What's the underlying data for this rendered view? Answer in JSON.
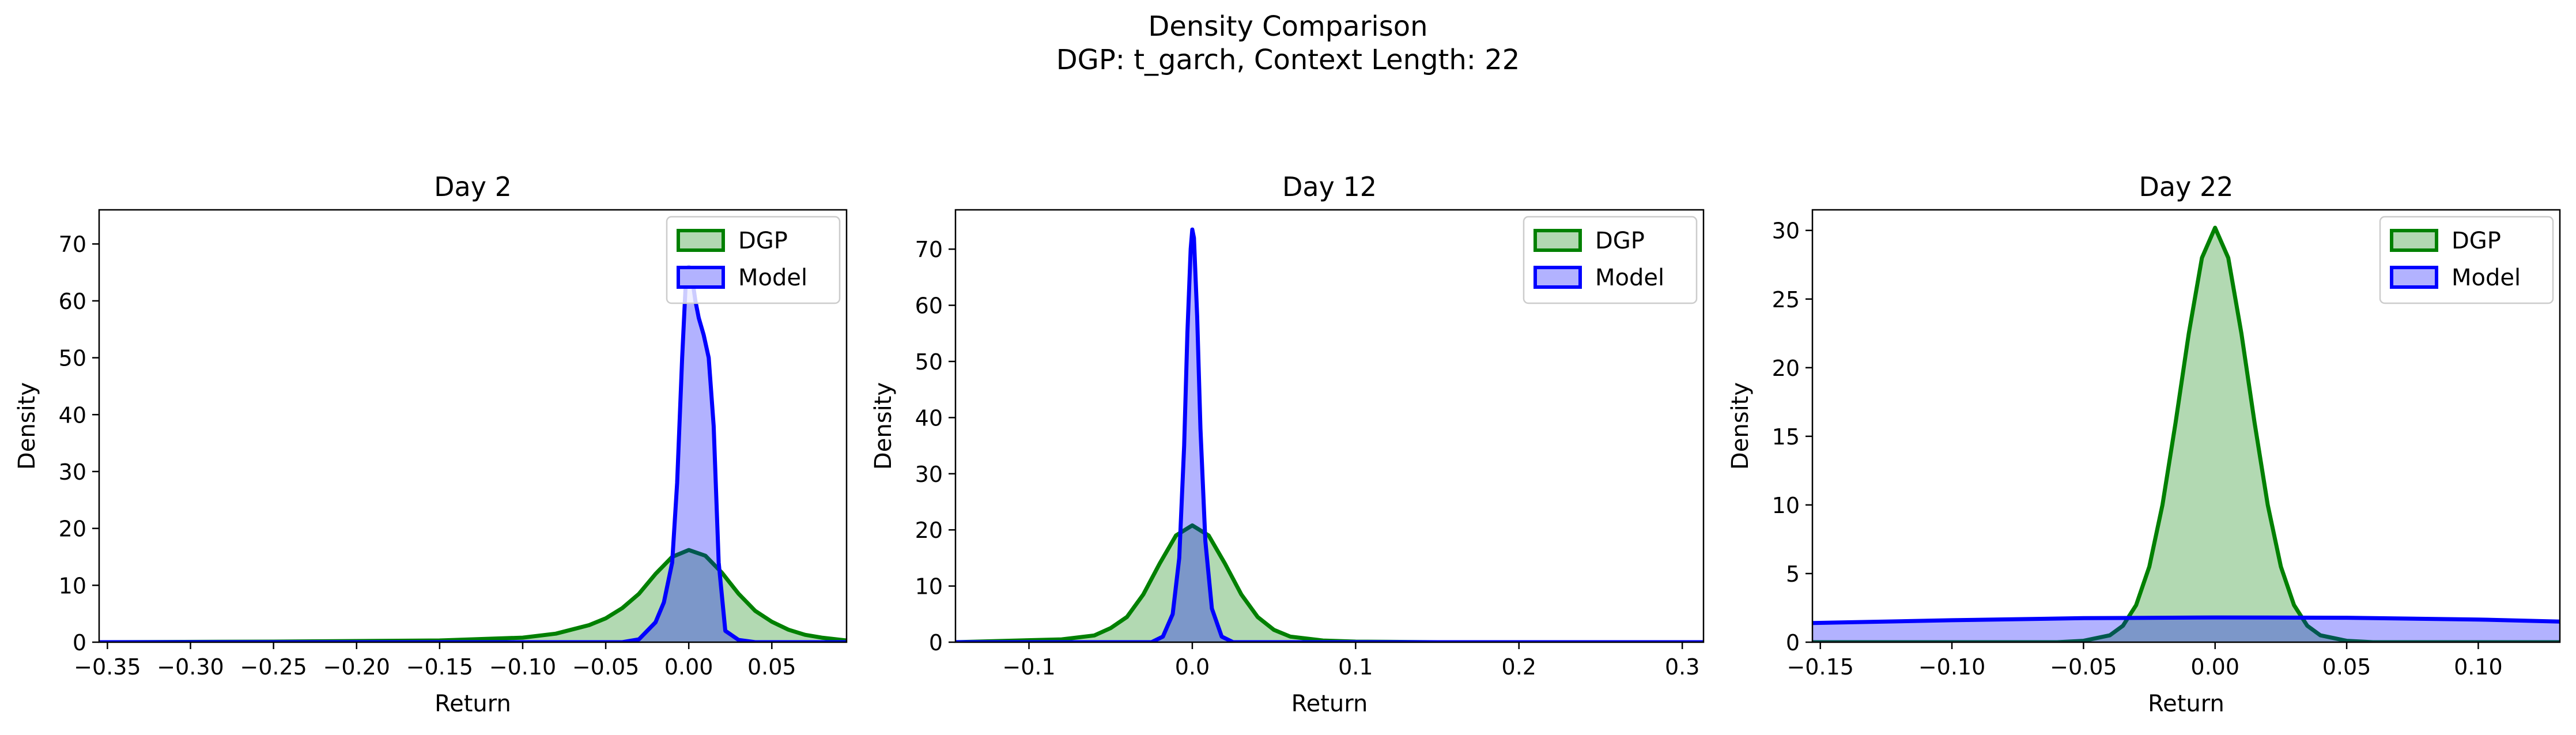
{
  "figure": {
    "title_line1": "Density Comparison",
    "title_line2": "DGP: t_garch, Context Length: 22"
  },
  "colors": {
    "dgp_line": "#008000",
    "dgp_fill": "#b2d8b2",
    "model_line": "#0000ff",
    "model_fill": "#b2b2ff",
    "overlap_fill": "#7f93cc"
  },
  "chart_data": [
    {
      "type": "area",
      "title": "Day 2",
      "xlabel": "Return",
      "ylabel": "Density",
      "xlim": [
        -0.355,
        0.095
      ],
      "ylim": [
        0,
        76
      ],
      "xticks": [
        -0.35,
        -0.3,
        -0.25,
        -0.2,
        -0.15,
        -0.1,
        -0.05,
        0.0,
        0.05
      ],
      "xtick_labels": [
        "−0.35",
        "−0.30",
        "−0.25",
        "−0.20",
        "−0.15",
        "−0.10",
        "−0.05",
        "0.00",
        "0.05"
      ],
      "yticks": [
        0,
        10,
        20,
        30,
        40,
        50,
        60,
        70
      ],
      "yticks_labels": [
        "0",
        "10",
        "20",
        "30",
        "40",
        "50",
        "60",
        "70"
      ],
      "legend": "top-right",
      "series": [
        {
          "name": "DGP",
          "x": [
            -0.355,
            -0.25,
            -0.15,
            -0.1,
            -0.08,
            -0.06,
            -0.05,
            -0.04,
            -0.03,
            -0.02,
            -0.01,
            0.0,
            0.01,
            0.02,
            0.03,
            0.04,
            0.05,
            0.06,
            0.07,
            0.08,
            0.095
          ],
          "y": [
            0,
            0.1,
            0.3,
            0.8,
            1.5,
            3.0,
            4.2,
            6.0,
            8.5,
            12.0,
            15.0,
            16.2,
            15.2,
            12.2,
            8.5,
            5.5,
            3.6,
            2.2,
            1.3,
            0.8,
            0.3
          ]
        },
        {
          "name": "Model",
          "x": [
            -0.355,
            -0.04,
            -0.03,
            -0.02,
            -0.015,
            -0.01,
            -0.007,
            -0.004,
            -0.002,
            0.0,
            0.002,
            0.004,
            0.006,
            0.009,
            0.012,
            0.015,
            0.018,
            0.022,
            0.03,
            0.04,
            0.095
          ],
          "y": [
            0,
            0,
            0.5,
            3.5,
            7.0,
            14.0,
            28.0,
            50.0,
            62.0,
            66.0,
            64.0,
            60.0,
            57.0,
            54.0,
            50.0,
            38.0,
            14.0,
            2.0,
            0.4,
            0,
            0
          ]
        }
      ]
    },
    {
      "type": "area",
      "title": "Day 12",
      "xlabel": "Return",
      "ylabel": "Density",
      "xlim": [
        -0.145,
        0.313
      ],
      "ylim": [
        0,
        77
      ],
      "xticks": [
        -0.1,
        0.0,
        0.1,
        0.2,
        0.3
      ],
      "xtick_labels": [
        "−0.1",
        "0.0",
        "0.1",
        "0.2",
        "0.3"
      ],
      "yticks": [
        0,
        10,
        20,
        30,
        40,
        50,
        60,
        70
      ],
      "yticks_labels": [
        "0",
        "10",
        "20",
        "30",
        "40",
        "50",
        "60",
        "70"
      ],
      "legend": "top-right",
      "series": [
        {
          "name": "DGP",
          "x": [
            -0.145,
            -0.08,
            -0.06,
            -0.05,
            -0.04,
            -0.03,
            -0.02,
            -0.01,
            0.0,
            0.01,
            0.02,
            0.03,
            0.04,
            0.05,
            0.06,
            0.08,
            0.1,
            0.15,
            0.313
          ],
          "y": [
            0,
            0.5,
            1.2,
            2.5,
            4.5,
            8.5,
            14.0,
            19.0,
            20.8,
            19.0,
            14.0,
            8.5,
            4.5,
            2.2,
            1.0,
            0.3,
            0.1,
            0,
            0
          ]
        },
        {
          "name": "Model",
          "x": [
            -0.145,
            -0.025,
            -0.018,
            -0.012,
            -0.008,
            -0.005,
            -0.003,
            -0.001,
            0.0,
            0.001,
            0.003,
            0.005,
            0.008,
            0.012,
            0.018,
            0.025,
            0.313
          ],
          "y": [
            0,
            0,
            1.0,
            5.0,
            15.0,
            35.0,
            55.0,
            70.0,
            73.5,
            72.0,
            58.0,
            38.0,
            18.0,
            6.0,
            1.0,
            0,
            0
          ]
        }
      ]
    },
    {
      "type": "area",
      "title": "Day 22",
      "xlabel": "Return",
      "ylabel": "Density",
      "xlim": [
        -0.153,
        0.131
      ],
      "ylim": [
        0,
        31.5
      ],
      "xticks": [
        -0.15,
        -0.1,
        -0.05,
        0.0,
        0.05,
        0.1
      ],
      "xtick_labels": [
        "−0.15",
        "−0.10",
        "−0.05",
        "0.00",
        "0.05",
        "0.10"
      ],
      "yticks": [
        0,
        5,
        10,
        15,
        20,
        25,
        30
      ],
      "yticks_labels": [
        "0",
        "5",
        "10",
        "15",
        "20",
        "25",
        "30"
      ],
      "legend": "top-right",
      "series": [
        {
          "name": "DGP",
          "x": [
            -0.153,
            -0.06,
            -0.05,
            -0.04,
            -0.035,
            -0.03,
            -0.025,
            -0.02,
            -0.015,
            -0.01,
            -0.005,
            0.0,
            0.005,
            0.01,
            0.015,
            0.02,
            0.025,
            0.03,
            0.035,
            0.04,
            0.05,
            0.06,
            0.131
          ],
          "y": [
            0,
            0,
            0.1,
            0.5,
            1.2,
            2.7,
            5.5,
            10.0,
            16.0,
            22.5,
            28.0,
            30.2,
            28.0,
            22.5,
            16.0,
            10.0,
            5.5,
            2.7,
            1.2,
            0.5,
            0.1,
            0,
            0
          ]
        },
        {
          "name": "Model",
          "x": [
            -0.153,
            -0.1,
            -0.05,
            0.0,
            0.05,
            0.1,
            0.131
          ],
          "y": [
            1.4,
            1.6,
            1.75,
            1.8,
            1.78,
            1.65,
            1.5
          ]
        }
      ]
    }
  ]
}
